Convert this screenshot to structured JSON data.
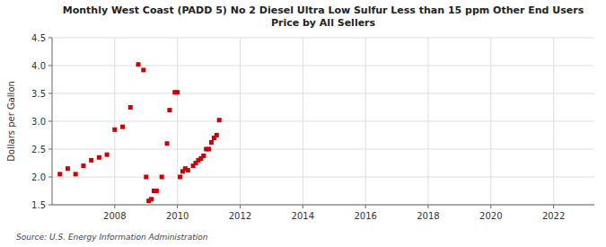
{
  "chart_data": {
    "type": "scatter",
    "title": "Monthly West Coast (PADD 5) No 2 Diesel Ultra Low Sulfur Less than 15 ppm Other End Users\nPrice by All Sellers",
    "y_label": "Dollars per Gallon",
    "annotations": [
      "Source: U.S. Energy Information Administration"
    ],
    "color": "#cc0000",
    "marker": "square",
    "grid": true,
    "xlim": [
      2006.0,
      2023.3
    ],
    "ylim": [
      1.5,
      4.5
    ],
    "xticks": [
      2008,
      2010,
      2012,
      2014,
      2016,
      2018,
      2020,
      2022
    ],
    "yticks": [
      1.5,
      {
        "value": 2,
        "label": "2.0"
      },
      2.5,
      {
        "value": 3,
        "label": "3.0"
      },
      3.5,
      {
        "value": 4,
        "label": "4.0"
      },
      4.5
    ],
    "x": [
      2006.25,
      2006.5,
      2006.75,
      2007.0,
      2007.25,
      2007.5,
      2007.75,
      2008.0,
      2008.25,
      2008.5,
      2008.75,
      2008.917,
      2009.0,
      2009.083,
      2009.167,
      2009.25,
      2009.333,
      2009.5,
      2009.667,
      2009.75,
      2009.917,
      2010.0,
      2010.083,
      2010.167,
      2010.25,
      2010.333,
      2010.5,
      2010.583,
      2010.667,
      2010.75,
      2010.833,
      2010.917,
      2011.0,
      2011.083,
      2011.167,
      2011.25,
      2011.333
    ],
    "values": [
      2.05,
      2.15,
      2.05,
      2.2,
      2.3,
      2.35,
      2.4,
      2.85,
      2.9,
      3.25,
      4.02,
      3.92,
      2.0,
      1.57,
      1.6,
      1.75,
      1.75,
      2.0,
      2.6,
      3.2,
      3.52,
      3.52,
      2.0,
      2.1,
      2.15,
      2.12,
      2.2,
      2.25,
      2.3,
      2.33,
      2.38,
      2.5,
      2.5,
      2.62,
      2.7,
      2.75,
      3.02
    ]
  }
}
